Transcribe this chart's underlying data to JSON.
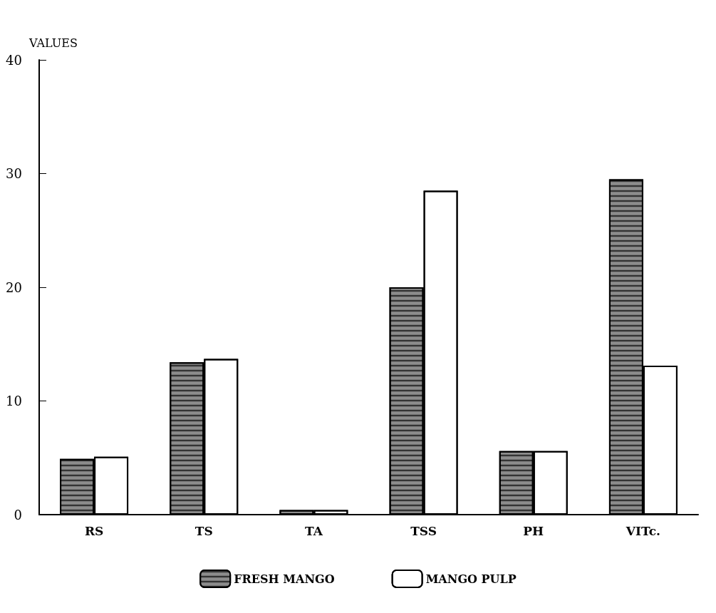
{
  "chart_data": {
    "type": "bar",
    "ylabel": "VALUES",
    "categories": [
      "RS",
      "TS",
      "TA",
      "TSS",
      "PH",
      "VITc."
    ],
    "series": [
      {
        "name": "FRESH MANGO",
        "color": "#8c8c8c",
        "values": [
          4.9,
          13.4,
          0.4,
          20.0,
          5.6,
          29.5
        ]
      },
      {
        "name": "MANGO PULP",
        "color": "#ffffff",
        "values": [
          5.1,
          13.7,
          0.4,
          28.5,
          5.6,
          13.1
        ]
      }
    ],
    "ylim": [
      0,
      40
    ],
    "yticks": [
      0,
      10,
      20,
      30,
      40
    ],
    "grid": false,
    "legend": "bottom"
  }
}
